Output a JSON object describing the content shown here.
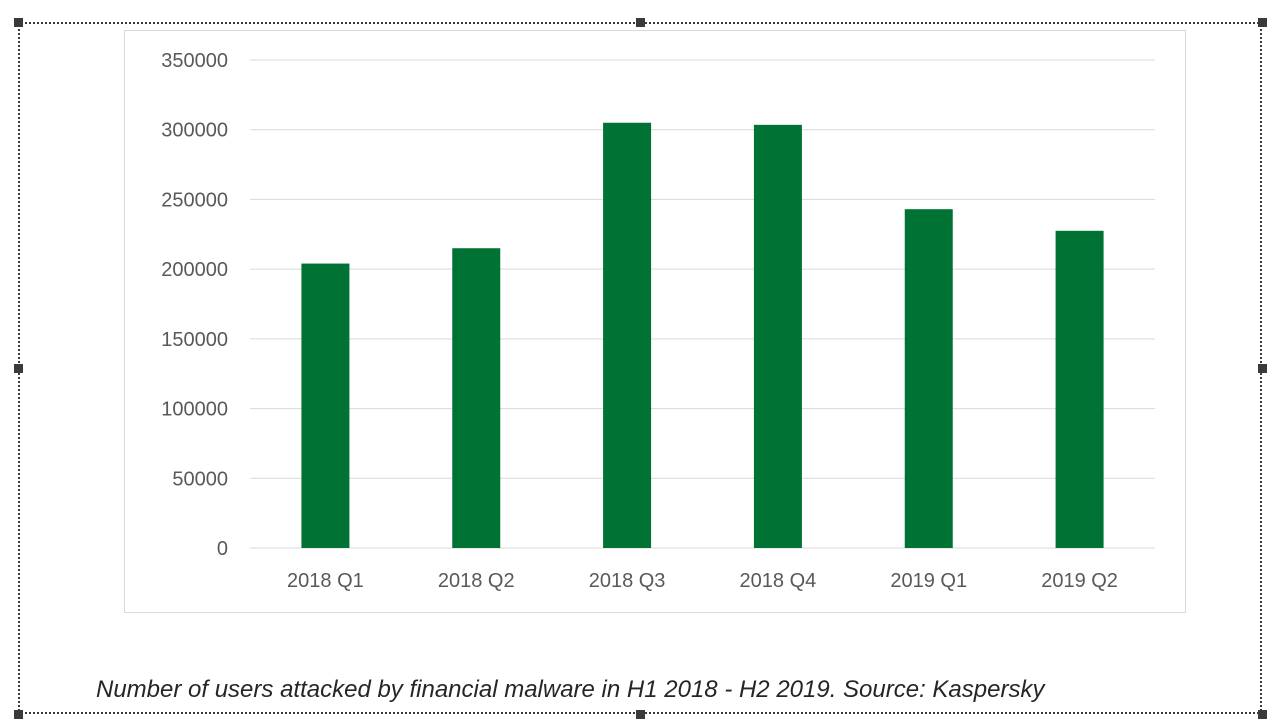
{
  "caption": "Number of users attacked by financial malware in H1 2018 - H2 2019. Source: Kaspersky",
  "colors": {
    "bar": "#007234",
    "grid": "#d9d9d9",
    "tick_text": "#595959",
    "selection": "#3a3a3a"
  },
  "chart_data": {
    "type": "bar",
    "title": "",
    "xlabel": "",
    "ylabel": "",
    "categories": [
      "2018 Q1",
      "2018 Q2",
      "2018 Q3",
      "2018 Q4",
      "2019 Q1",
      "2019 Q2"
    ],
    "values": [
      204000,
      215000,
      305000,
      303500,
      243000,
      227500
    ],
    "ylim": [
      0,
      350000
    ],
    "yticks": [
      "0",
      "50000",
      "100000",
      "150000",
      "200000",
      "250000",
      "300000",
      "350000"
    ],
    "grid": true,
    "legend": "none"
  }
}
